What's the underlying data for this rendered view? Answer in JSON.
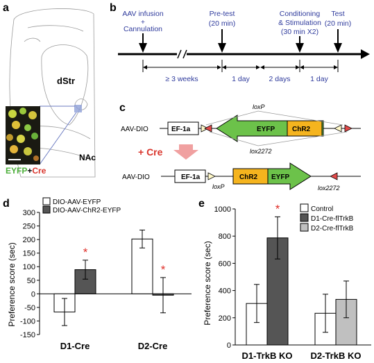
{
  "panels": {
    "a": {
      "label": "a",
      "region_dstr": "dStr",
      "region_nac": "NAc",
      "legend_eyfp": "EYFP",
      "legend_plus": "+",
      "legend_cre": "Cre"
    },
    "b": {
      "label": "b",
      "events": [
        {
          "l1": "AAV infusion",
          "l2": "+",
          "l3": "Cannulation"
        },
        {
          "l1": "Pre-test",
          "l2": "(20 min)",
          "l3": ""
        },
        {
          "l1": "Conditioning",
          "l2": "& Stimulation",
          "l3": "(30 min X2)"
        },
        {
          "l1": "Test",
          "l2": "(20 min)",
          "l3": ""
        }
      ],
      "intervals": [
        "≥ 3 weeks",
        "1 day",
        "2 days",
        "1 day"
      ]
    },
    "c": {
      "label": "c",
      "construct1_name": "AAV-DIO",
      "construct2_name": "AAV-DIO",
      "promoter": "EF-1a",
      "eyfp": "EYFP",
      "chr2": "ChR2",
      "loxp": "loxP",
      "lox2272": "lox2272",
      "cre_text": "+ Cre"
    },
    "d": {
      "label": "d",
      "ylabel": "Preference score (sec)"
    },
    "e": {
      "label": "e",
      "ylabel": "Preference score (sec)"
    }
  },
  "chart_data": [
    {
      "id": "d",
      "type": "bar",
      "ylabel": "Preference score (sec)",
      "ylim": [
        -150,
        300
      ],
      "yticks": [
        -150,
        -100,
        -50,
        0,
        50,
        100,
        150,
        200,
        250,
        300
      ],
      "categories": [
        "D1-Cre",
        "D2-Cre"
      ],
      "series": [
        {
          "name": "DIO-AAV-EYFP",
          "color": "#ffffff",
          "values": [
            -67,
            202
          ],
          "errors": [
            50,
            33
          ]
        },
        {
          "name": "DIO-AAV-ChR2-EYFP",
          "color": "#555555",
          "values": [
            89,
            -5
          ],
          "errors": [
            35,
            65
          ]
        }
      ],
      "significance": [
        {
          "category": 0,
          "series": 1,
          "mark": "*"
        },
        {
          "category": 1,
          "series": 1,
          "mark": "*"
        }
      ],
      "legend": "top-left"
    },
    {
      "id": "e",
      "type": "bar",
      "ylabel": "Preference score (sec)",
      "ylim": [
        0,
        1000
      ],
      "yticks": [
        0,
        200,
        400,
        600,
        800,
        1000
      ],
      "categories": [
        "D1-TrkB KO",
        "D2-TrkB KO"
      ],
      "groups": [
        {
          "bars": [
            {
              "series": "Control",
              "value": 305,
              "error": 140
            },
            {
              "series": "D1-Cre-flTrkB",
              "value": 787,
              "error": 155
            }
          ]
        },
        {
          "bars": [
            {
              "series": "Control",
              "value": 233,
              "error": 140
            },
            {
              "series": "D2-Cre-flTrkB",
              "value": 335,
              "error": 135
            }
          ]
        }
      ],
      "series": [
        {
          "name": "Control",
          "color": "#ffffff"
        },
        {
          "name": "D1-Cre-flTrkB",
          "color": "#555555"
        },
        {
          "name": "D2-Cre-flTrkB",
          "color": "#c0c0c0"
        }
      ],
      "significance": [
        {
          "category": 0,
          "bar": 1,
          "mark": "*"
        }
      ],
      "legend": "top-right"
    }
  ],
  "colors": {
    "timeline_text": "#2e3a9c",
    "sig_star": "#e0302a",
    "cre_arrow": "#f0a0a0",
    "cre_text": "#d9342b",
    "eyfp_green": "#6cc24a",
    "chr2_orange": "#f5b41e",
    "lox_red": "#e34a4a",
    "lox_yellow": "#fff8c8"
  }
}
